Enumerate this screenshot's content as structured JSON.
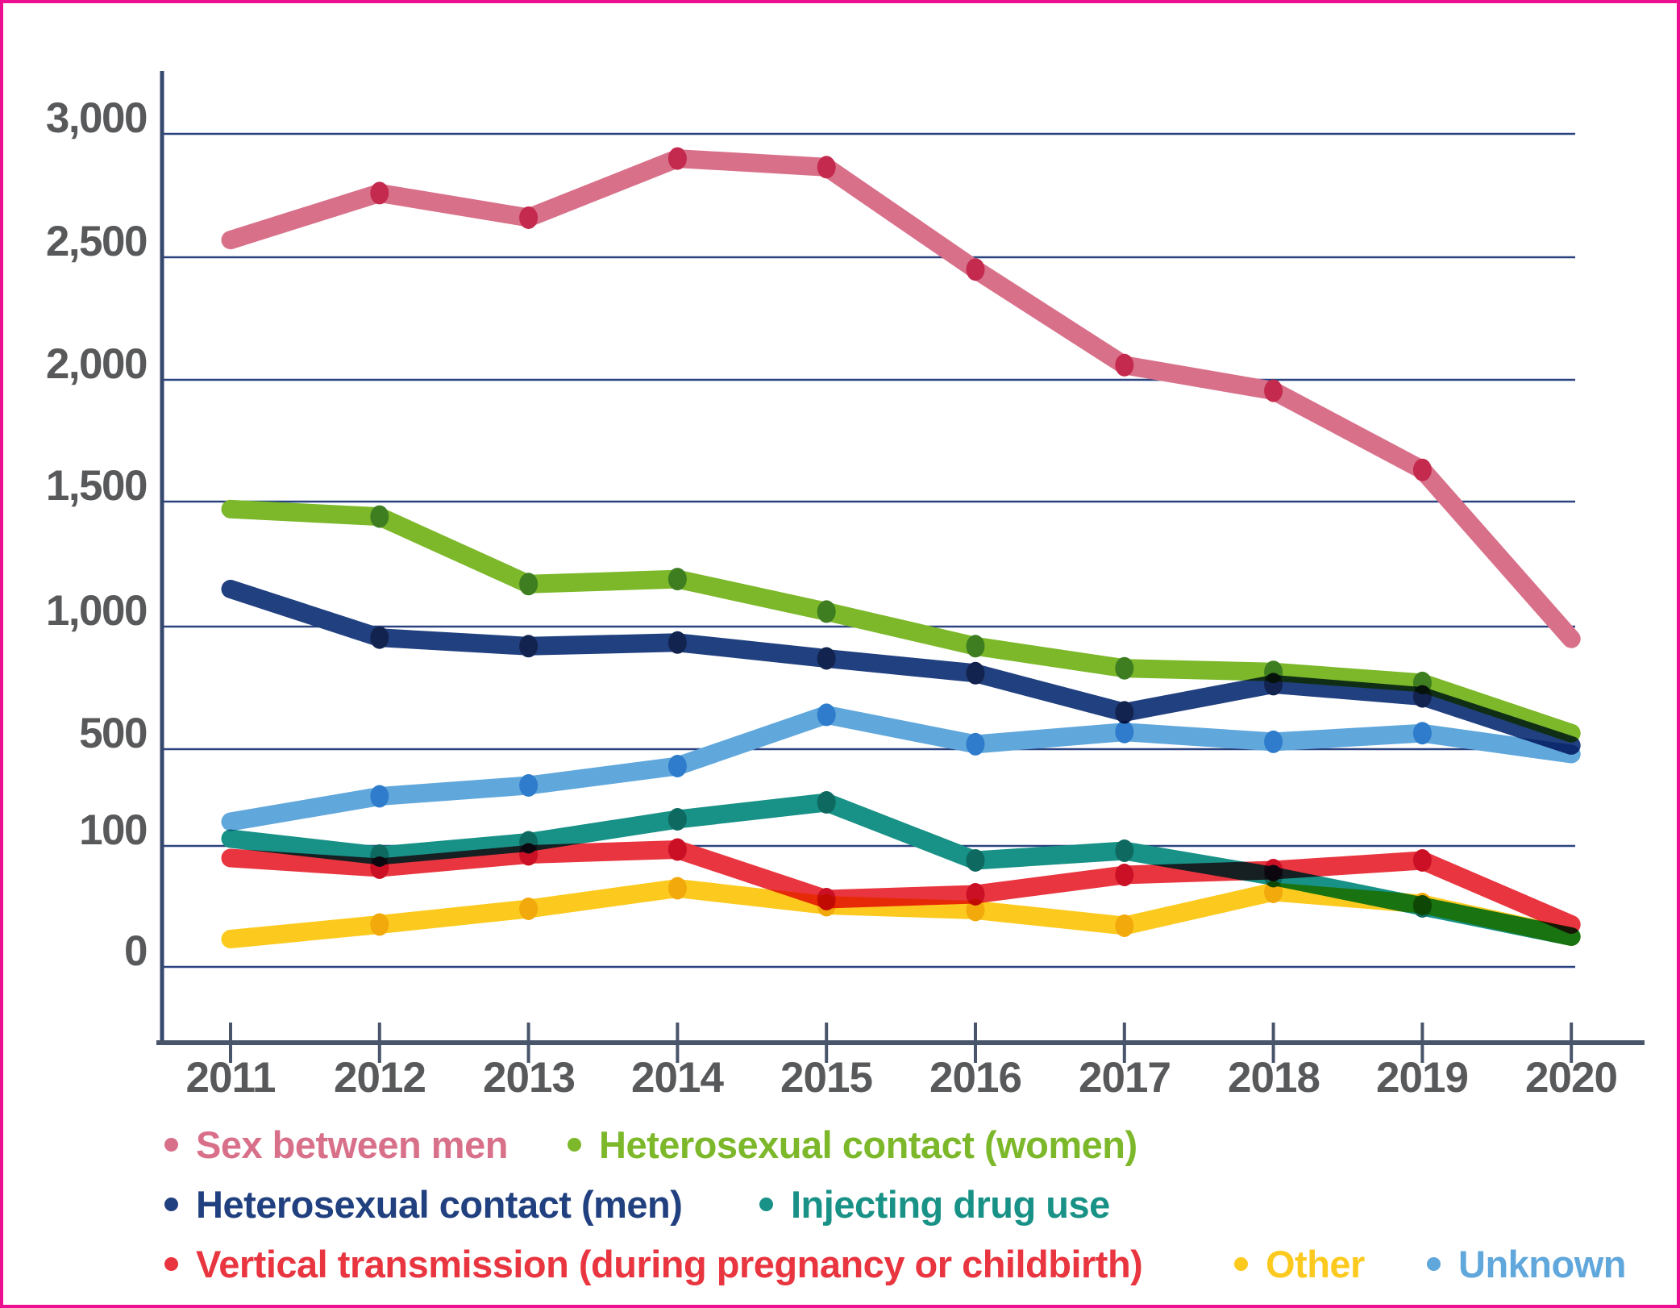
{
  "frame": {
    "background": "#ffffff",
    "border_color": "#ec0f8f"
  },
  "colors": {
    "gridline": "#2a4380",
    "axis_line": "#49556a",
    "tick_label": "#58595b"
  },
  "chart_data": {
    "type": "line",
    "grid": true,
    "legend_position": "bottom",
    "years": [
      2011,
      2012,
      2013,
      2014,
      2015,
      2016,
      2017,
      2018,
      2019,
      2020
    ],
    "x_labels": [
      "2011",
      "2012",
      "2013",
      "2014",
      "2015",
      "2016",
      "2017",
      "2018",
      "2019",
      "2020"
    ],
    "y_axis": {
      "tick_labels": [
        "3,000",
        "2,500",
        "2,000",
        "1,500",
        "1,000",
        "500",
        "100",
        "0"
      ],
      "tick_values": [
        3000,
        2500,
        2000,
        1500,
        1000,
        500,
        100,
        0
      ]
    },
    "series": [
      {
        "name": "Sex between men",
        "color": "#d8708a",
        "marker_color": "#c42a4d",
        "values": [
          2570,
          2760,
          2660,
          2900,
          2865,
          2450,
          2060,
          1955,
          1630,
          950
        ]
      },
      {
        "name": "Heterosexual contact (women)",
        "color": "#7cb82a",
        "marker_color": "#3e7e20",
        "values": [
          1470,
          1440,
          1170,
          1190,
          1060,
          920,
          830,
          815,
          770,
          565
        ]
      },
      {
        "name": "Heterosexual contact (men)",
        "color": "#21407f",
        "marker_color": "#13234f",
        "values": [
          1150,
          955,
          920,
          935,
          870,
          810,
          650,
          765,
          715,
          515
        ]
      },
      {
        "name": "Injecting drug use",
        "color": "#189186",
        "marker_color": "#0e6a61",
        "values": [
          130,
          92,
          115,
          210,
          280,
          88,
          96,
          75,
          50,
          25
        ]
      },
      {
        "name": "Vertical transmission (during pregnancy or childbirth)",
        "color": "#e9353f",
        "marker_color": "#cb1026",
        "values": [
          90,
          82,
          93,
          97,
          56,
          60,
          76,
          80,
          88,
          35
        ]
      },
      {
        "name": "Other",
        "color": "#fcca1e",
        "marker_color": "#f2a90b",
        "values": [
          23,
          35,
          48,
          65,
          51,
          47,
          34,
          62,
          52,
          25
        ]
      },
      {
        "name": "Unknown",
        "color": "#60a7dc",
        "marker_color": "#2e7ccb",
        "values": [
          200,
          305,
          350,
          430,
          640,
          520,
          570,
          530,
          565,
          480
        ]
      }
    ]
  }
}
